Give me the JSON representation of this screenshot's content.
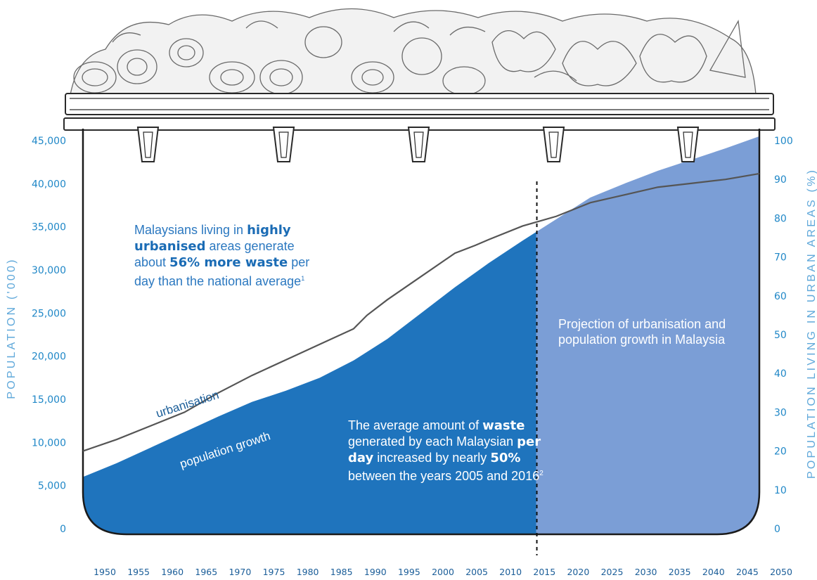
{
  "chart_data": {
    "type": "area",
    "x_ticks": [
      "1950",
      "1955",
      "1960",
      "1965",
      "1970",
      "1975",
      "1980",
      "1985",
      "1990",
      "1995",
      "2000",
      "2005",
      "2010",
      "2015",
      "2020",
      "2025",
      "2030",
      "2035",
      "2040",
      "2045",
      "2050"
    ],
    "y_left": {
      "label": "POPULATION ('000)",
      "ticks": [
        "45,000",
        "40,000",
        "35,000",
        "30,000",
        "25,000",
        "20,000",
        "15,000",
        "10,000",
        "5,000",
        "0"
      ],
      "range": [
        0,
        45000
      ]
    },
    "y_right": {
      "label": "POPULATION LIVING IN URBAN AREAS (%)",
      "ticks": [
        "100",
        "90",
        "80",
        "70",
        "60",
        "50",
        "40",
        "30",
        "20",
        "10",
        "0"
      ],
      "range": [
        0,
        100
      ]
    },
    "projection_start_year": 2017,
    "series": [
      {
        "name": "population growth",
        "axis": "left",
        "style": "area",
        "x": [
          1950,
          1955,
          1960,
          1965,
          1970,
          1975,
          1980,
          1985,
          1990,
          1995,
          2000,
          2005,
          2010,
          2015,
          2017,
          2020,
          2025,
          2030,
          2035,
          2040,
          2045,
          2050
        ],
        "values": [
          6000,
          7600,
          9400,
          11200,
          13000,
          14700,
          16000,
          17500,
          19500,
          22000,
          25000,
          28000,
          30800,
          33400,
          34400,
          35900,
          38400,
          40000,
          41500,
          42800,
          44100,
          45500
        ]
      },
      {
        "name": "urbanisation",
        "axis": "right",
        "style": "line",
        "x": [
          1950,
          1955,
          1960,
          1965,
          1970,
          1975,
          1980,
          1985,
          1990,
          1992,
          1995,
          2000,
          2005,
          2008,
          2010,
          2015,
          2017,
          2020,
          2025,
          2030,
          2035,
          2040,
          2045,
          2050
        ],
        "values": [
          20,
          23,
          26.5,
          30,
          35,
          39.5,
          43.5,
          47.5,
          51.5,
          55,
          59,
          65,
          71,
          73,
          74.5,
          78,
          79,
          80.5,
          84,
          86,
          88,
          89,
          90,
          91.5
        ]
      }
    ],
    "labels": {
      "urbanisation": "urbanisation",
      "population_growth": "population growth"
    },
    "colors": {
      "historic_area": "#1f74bd",
      "projection_area": "#7b9ed6",
      "urban_line": "#555555",
      "axis_text": "#1f87c7",
      "x_text": "#1a5d98"
    }
  },
  "notes": {
    "urban": {
      "t1": "Malaysians living in ",
      "b1": "highly",
      "b2": "urbanised",
      "t2": " areas generate about ",
      "b3": "56% more waste",
      "t3": " per day than the national average",
      "sup": "1"
    },
    "waste": {
      "t1": "The average amount of ",
      "b1": "waste",
      "t2": " generated by each Malaysian ",
      "b2": "per day",
      "t3": " increased by nearly ",
      "b3": "50%",
      "t4": " between the years 2005 and 2016",
      "sup": "2"
    },
    "projection": "Projection of urbanisation and population growth in Malaysia"
  }
}
